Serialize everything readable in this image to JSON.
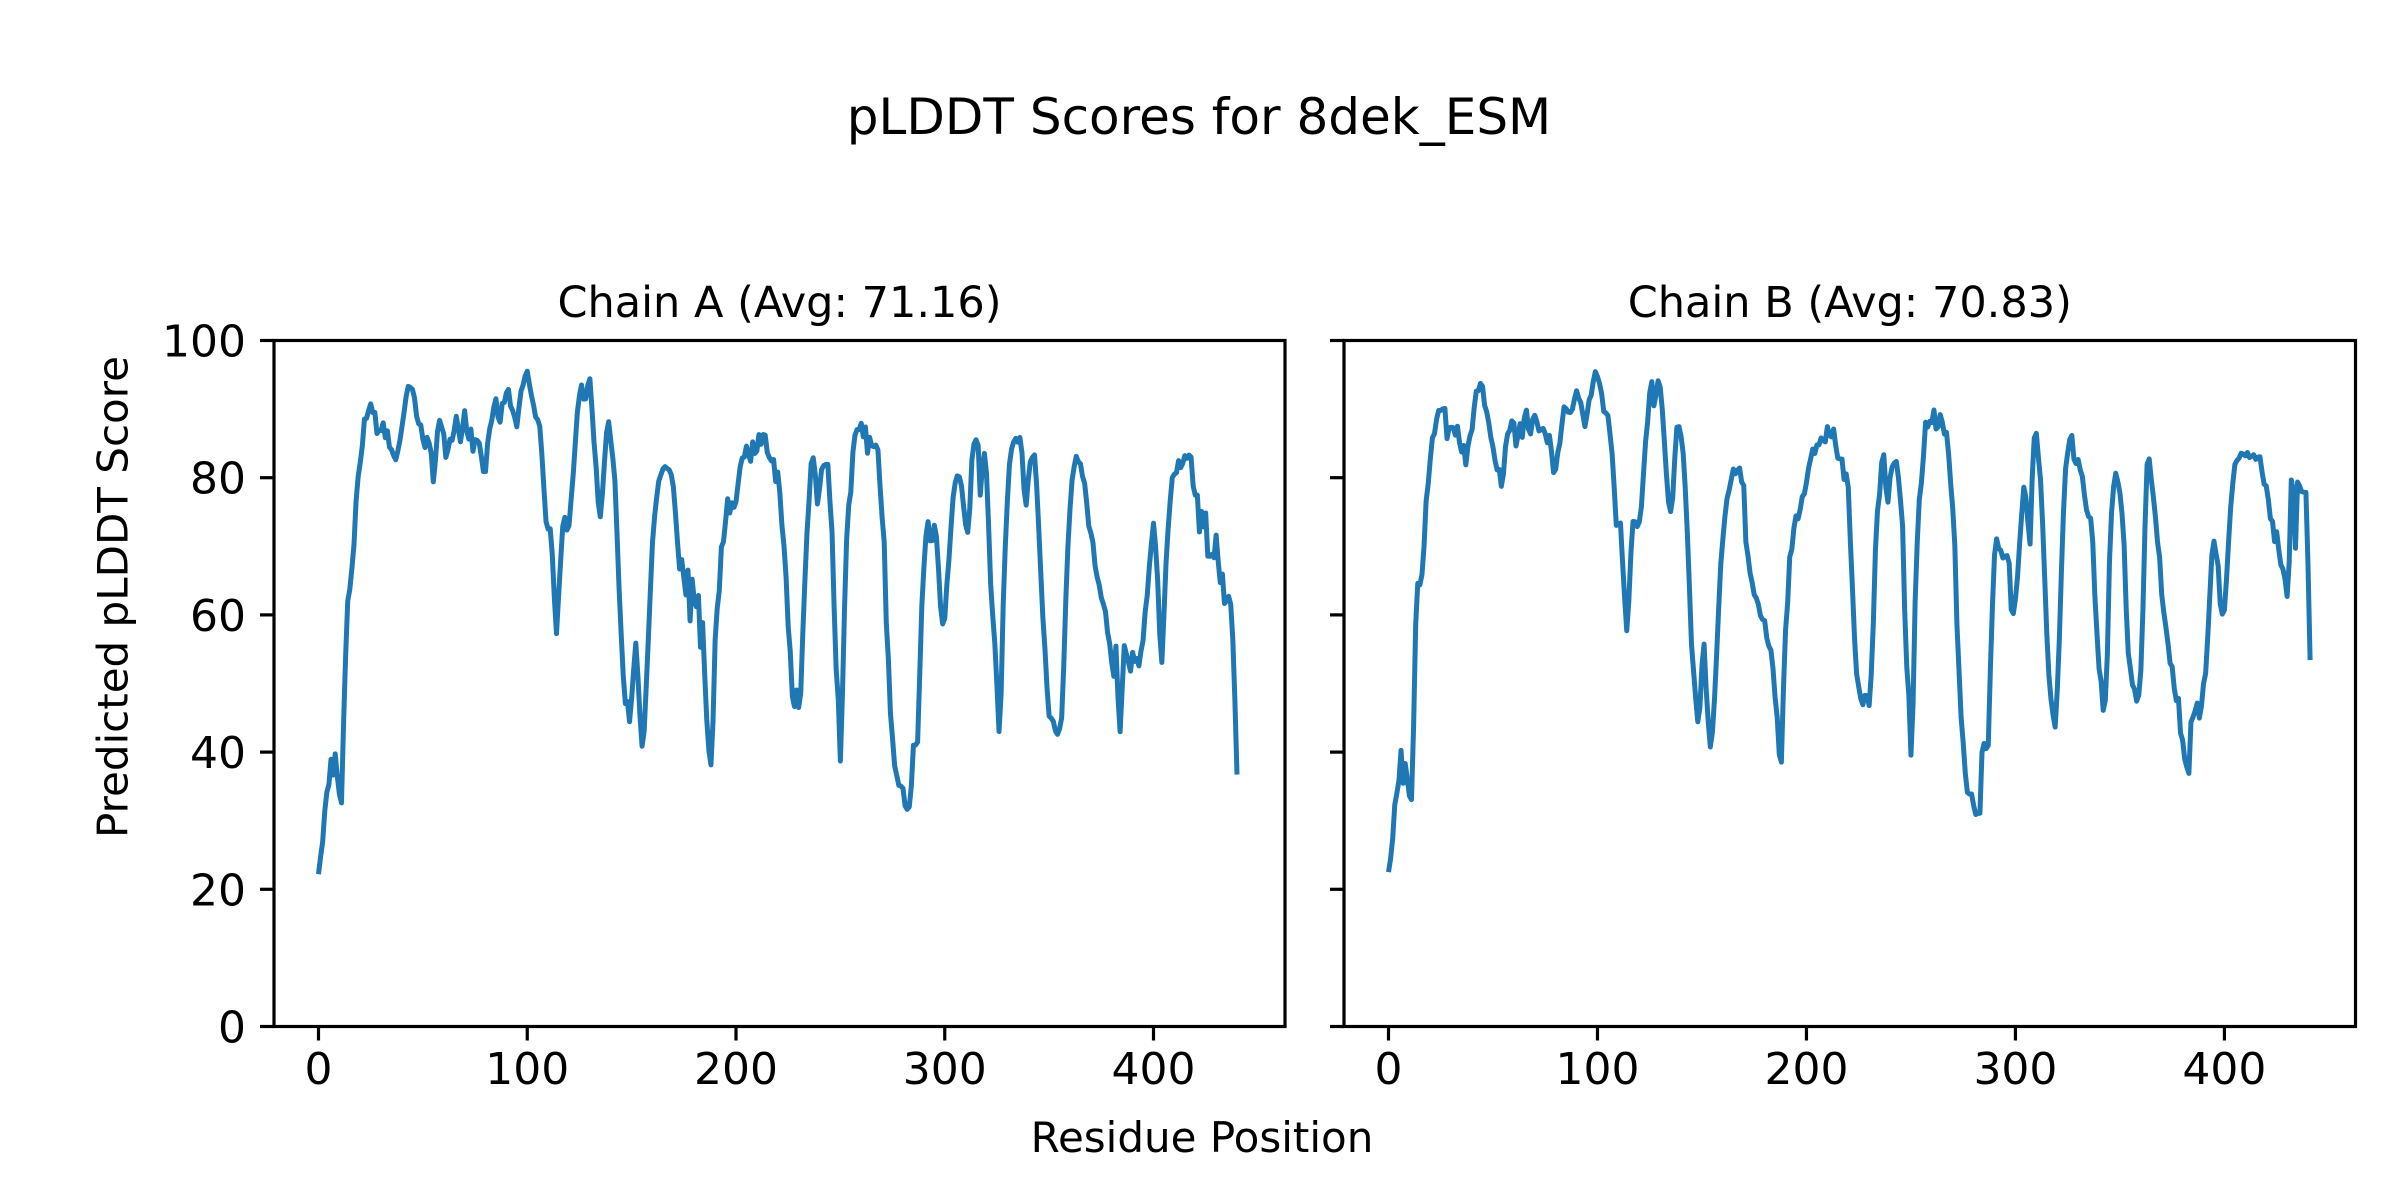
{
  "figure_title": "pLDDT Scores for 8dek_ESM",
  "xlabel": "Residue Position",
  "ylabel": "Predicted pLDDT Score",
  "colors": {
    "line": "#1f77b4",
    "text": "#000000",
    "background": "#ffffff"
  },
  "chart_data": [
    {
      "type": "line",
      "title": "Chain A (Avg: 71.16)",
      "chain": "A",
      "avg_label": "71.16",
      "xlabel": "Residue Position",
      "ylabel": "Predicted pLDDT Score",
      "xlim": [
        -22,
        462
      ],
      "ylim": [
        0,
        100
      ],
      "xticks": [
        0,
        100,
        200,
        300,
        400
      ],
      "yticks": [
        0,
        20,
        40,
        60,
        80,
        100
      ],
      "x_start": 0,
      "x_step": 1,
      "values": [
        22.2,
        24.76,
        26.95,
        31.4,
        34.15,
        35.3,
        38.95,
        36.65,
        39.75,
        36.49,
        33.9,
        32.59,
        44.05,
        54.07,
        62.02,
        63.75,
        66.77,
        70.28,
        76.57,
        80.15,
        82.21,
        84.66,
        88.54,
        88.64,
        89.78,
        90.76,
        89.5,
        89.51,
        86.44,
        86.89,
        86.88,
        88.0,
        85.82,
        86.82,
        84.44,
        84.06,
        83.24,
        82.62,
        83.88,
        85.43,
        87.45,
        89.58,
        91.87,
        93.31,
        93.15,
        92.88,
        91.63,
        88.97,
        87.85,
        87.69,
        85.6,
        84.4,
        85.89,
        85.04,
        83.57,
        79.39,
        82.49,
        86.71,
        88.37,
        87.36,
        86.41,
        82.97,
        84.07,
        85.62,
        85.44,
        86.88,
        88.95,
        87.13,
        85.24,
        87.21,
        89.77,
        86.87,
        85.63,
        87.09,
        83.85,
        85.55,
        85.44,
        85.02,
        83.13,
        80.89,
        80.89,
        84.95,
        87.1,
        88.34,
        90.28,
        91.51,
        88.83,
        88.09,
        90.82,
        90.96,
        92.37,
        92.86,
        90.44,
        89.79,
        88.78,
        87.41,
        90.12,
        92.59,
        93.5,
        94.81,
        95.52,
        93.66,
        92.0,
        90.6,
        88.85,
        88.45,
        87.5,
        83.41,
        78.33,
        73.59,
        72.52,
        72.56,
        68.73,
        62.36,
        57.27,
        62.61,
        67.9,
        72.89,
        74.22,
        72.37,
        73.02,
        76.76,
        80.4,
        84.96,
        89.53,
        91.93,
        93.52,
        91.45,
        91.5,
        93.47,
        94.42,
        90.06,
        85.1,
        81.51,
        76.38,
        74.31,
        77.65,
        82.32,
        86.58,
        88.16,
        85.45,
        82.83,
        79.53,
        71.85,
        63.77,
        57.18,
        51.08,
        47.07,
        47.37,
        44.43,
        47.84,
        52.09,
        55.89,
        51.15,
        45.28,
        40.86,
        43.01,
        49.64,
        56.45,
        63.64,
        70.61,
        74.32,
        77.12,
        79.53,
        80.4,
        81.28,
        81.61,
        81.35,
        81.15,
        80.43,
        78.64,
        74.86,
        70.49,
        66.69,
        68.06,
        65.48,
        62.92,
        66.52,
        59.13,
        65.2,
        62.09,
        61.2,
        62.83,
        55.28,
        58.87,
        51.39,
        44.7,
        40.27,
        38.14,
        44.55,
        56.34,
        60.94,
        63.56,
        69.9,
        70.67,
        73.64,
        76.93,
        74.86,
        76.35,
        75.67,
        76.5,
        79.09,
        81.58,
        82.87,
        83.02,
        84.6,
        83.39,
        82.39,
        85.23,
        83.53,
        83.91,
        86.28,
        84.86,
        86.29,
        86.2,
        83.65,
        82.93,
        82.45,
        82.65,
        79.44,
        80.82,
        77.79,
        73.09,
        70.04,
        65.42,
        58.32,
        54.61,
        48.13,
        46.64,
        49.06,
        46.5,
        48.54,
        57.3,
        64.95,
        71.88,
        76.7,
        82.05,
        82.91,
        80.38,
        76.17,
        78.38,
        81.19,
        81.76,
        81.94,
        81.95,
        76.52,
        72.13,
        61.18,
        51.98,
        47.7,
        38.69,
        48.51,
        61.07,
        71.03,
        75.99,
        77.92,
        83.7,
        86.21,
        87.01,
        87.02,
        87.94,
        85.95,
        87.39,
        83.57,
        85.88,
        84.68,
        84.52,
        84.76,
        84.04,
        78.78,
        74.19,
        70.63,
        58.76,
        53.54,
        45.57,
        41.96,
        38.0,
        36.59,
        35.16,
        35.04,
        34.72,
        32.17,
        31.66,
        32.01,
        35.07,
        41.0,
        41.02,
        41.46,
        51.14,
        61.16,
        66.87,
        71.51,
        73.59,
        70.8,
        70.82,
        73.07,
        71.43,
        66.76,
        61.19,
        58.68,
        59.48,
        64.37,
        68.0,
        72.77,
        77.11,
        79.24,
        80.27,
        80.12,
        78.82,
        75.9,
        73.17,
        72.04,
        75.53,
        82.61,
        84.91,
        85.54,
        84.73,
        77.46,
        81.41,
        83.54,
        80.6,
        73.05,
        64.47,
        59.81,
        55.75,
        49.71,
        42.99,
        48.47,
        61.48,
        70.0,
        76.65,
        81.94,
        84.16,
        85.21,
        85.73,
        85.19,
        85.87,
        83.6,
        78.27,
        76.0,
        79.67,
        82.34,
        82.97,
        83.33,
        79.01,
        72.79,
        66.11,
        59.62,
        55.05,
        49.36,
        45.23,
        44.94,
        44.49,
        43.1,
        42.59,
        43.38,
        44.96,
        52.55,
        62.2,
        69.96,
        75.42,
        79.66,
        81.59,
        83.12,
        82.31,
        82.04,
        80.18,
        79.21,
        76.35,
        72.94,
        71.94,
        70.53,
        67.17,
        65.52,
        64.34,
        62.51,
        61.56,
        60.49,
        57.42,
        55.84,
        53.02,
        51.04,
        55.45,
        47.9,
        42.97,
        49.29,
        55.52,
        54.31,
        53.12,
        51.8,
        54.53,
        53.21,
        53.65,
        52.57,
        54.7,
        56.26,
        60.44,
        62.84,
        67.01,
        70.36,
        73.37,
        69.95,
        65.03,
        57.18,
        53.07,
        59.97,
        67.55,
        72.48,
        76.62,
        80.0,
        80.52,
        80.72,
        82.49,
        81.46,
        82.09,
        83.21,
        82.82,
        83.3,
        83.0,
        78.79,
        77.46,
        77.46,
        72.08,
        75.09,
        72.82,
        74.86,
        68.57,
        68.55,
        68.83,
        68.33,
        71.63,
        67.78,
        64.7,
        65.95,
        61.67,
        62.01,
        62.71,
        61.52,
        56.41,
        47.5,
        36.72
      ]
    },
    {
      "type": "line",
      "title": "Chain B (Avg: 70.83)",
      "chain": "B",
      "avg_label": "70.83",
      "xlabel": "Residue Position",
      "ylabel": "Predicted pLDDT Score",
      "xlim": [
        -22,
        462
      ],
      "ylim": [
        0,
        100
      ],
      "xticks": [
        0,
        100,
        200,
        300,
        400
      ],
      "yticks": [
        0,
        20,
        40,
        60,
        80,
        100
      ],
      "x_start": 0,
      "x_step": 1,
      "values": [
        22.5,
        24.46,
        27.39,
        32.32,
        33.99,
        35.86,
        40.26,
        35.45,
        38.33,
        36.09,
        33.63,
        33.07,
        43.69,
        58.52,
        64.6,
        64.38,
        65.83,
        69.97,
        76.6,
        79.11,
        82.7,
        85.8,
        86.41,
        88.51,
        89.79,
        89.81,
        90.02,
        90.1,
        85.7,
        87.27,
        87.34,
        87.28,
        86.2,
        87.5,
        85.09,
        83.74,
        84.7,
        81.87,
        84.55,
        86.09,
        87.01,
        90.2,
        92.61,
        92.67,
        93.75,
        93.3,
        90.53,
        89.61,
        87.95,
        85.81,
        84.46,
        82.47,
        81.14,
        81.2,
        78.74,
        80.55,
        84.54,
        86.38,
        86.88,
        88.29,
        87.98,
        84.62,
        86.22,
        87.89,
        85.88,
        88.73,
        89.85,
        87.05,
        86.38,
        88.53,
        89.1,
        88.13,
        86.81,
        87.02,
        87.19,
        86.44,
        85.09,
        86.16,
        83.82,
        80.74,
        81.22,
        83.65,
        85.03,
        87.8,
        90.32,
        90.07,
        89.55,
        89.5,
        89.98,
        91.48,
        92.68,
        91.58,
        90.97,
        89.18,
        87.45,
        89.21,
        91.35,
        92.03,
        94.05,
        95.46,
        94.72,
        93.71,
        92.22,
        89.66,
        89.44,
        89.06,
        86.35,
        83.51,
        78.55,
        73.05,
        73.21,
        73.39,
        67.69,
        62.45,
        57.69,
        62.06,
        69.0,
        73.62,
        73.58,
        72.87,
        73.55,
        75.71,
        80.48,
        85.2,
        88.18,
        92.35,
        94.0,
        90.48,
        92.05,
        94.14,
        93.22,
        89.99,
        85.34,
        80.46,
        76.46,
        75.06,
        77.1,
        82.89,
        87.35,
        87.45,
        86.01,
        83.57,
        78.49,
        71.92,
        64.02,
        55.63,
        51.75,
        47.83,
        44.42,
        46.49,
        52.61,
        55.75,
        49.24,
        44.41,
        40.75,
        42.91,
        47.77,
        54.1,
        61.0,
        67.4,
        71.06,
        74.38,
        76.99,
        78.19,
        79.74,
        81.26,
        80.57,
        81.09,
        81.42,
        79.4,
        78.87,
        70.63,
        68.66,
        66.13,
        64.74,
        62.94,
        62.45,
        61.51,
        59.89,
        59.33,
        59.17,
        56.66,
        55.45,
        54.86,
        52.14,
        47.91,
        45.09,
        39.63,
        38.53,
        49.35,
        57.8,
        61.76,
        68.46,
        69.56,
        72.68,
        74.43,
        74.0,
        75.37,
        77.24,
        77.64,
        79.31,
        81.38,
        82.75,
        84.18,
        83.53,
        84.77,
        84.79,
        85.8,
        85.41,
        85.22,
        87.45,
        86.16,
        85.95,
        87.1,
        84.67,
        82.85,
        82.74,
        82.71,
        79.74,
        80.56,
        78.59,
        70.76,
        63.91,
        56.62,
        51.4,
        49.54,
        47.79,
        46.91,
        48.26,
        48.23,
        46.78,
        51.37,
        58.77,
        69.42,
        75.21,
        77.58,
        82.21,
        83.35,
        78.56,
        76.43,
        80.01,
        81.57,
        82.13,
        82.37,
        80.03,
        76.68,
        72.97,
        60.66,
        52.43,
        48.25,
        39.55,
        46.96,
        61.91,
        70.52,
        76.84,
        79.26,
        83.18,
        88.08,
        87.37,
        88.22,
        88.02,
        89.87,
        87.1,
        87.42,
        89.2,
        88.09,
        86.35,
        86.61,
        83.54,
        79.22,
        75.44,
        70.12,
        58.59,
        51.9,
        45.05,
        41.38,
        36.95,
        34.14,
        33.89,
        33.9,
        32.22,
        30.91,
        31.06,
        31.09,
        39.94,
        41.27,
        40.5,
        40.97,
        52.01,
        61.35,
        68.78,
        71.08,
        69.7,
        69.4,
        68.29,
        68.57,
        68.63,
        67.53,
        60.79,
        60.18,
        62.36,
        65.56,
        70.39,
        74.66,
        78.61,
        77.13,
        73.45,
        70.33,
        79.81,
        85.78,
        86.48,
        82.93,
        79.72,
        73.31,
        65.4,
        57.33,
        51.23,
        47.73,
        45.41,
        43.65,
        48.97,
        56.45,
        66.39,
        75.08,
        81.34,
        83.62,
        85.56,
        86.16,
        82.68,
        82.06,
        82.66,
        81.15,
        80.21,
        77.52,
        75.35,
        74.34,
        74.07,
        70.63,
        62.83,
        57.4,
        52.19,
        50.3,
        46.08,
        47.54,
        54.36,
        67.81,
        74.93,
        78.76,
        80.66,
        79.39,
        77.77,
        74.74,
        70.22,
        60.94,
        54.4,
        52.19,
        49.8,
        49.17,
        47.42,
        48.28,
        51.85,
        60.69,
        72.91,
        81.94,
        82.75,
        79.77,
        77.2,
        74.24,
        70.58,
        68.36,
        62.96,
        60.35,
        58.2,
        55.86,
        52.95,
        52.44,
        49.3,
        47.49,
        47.84,
        42.78,
        41.74,
        38.99,
        37.81,
        36.9,
        44.4,
        45.12,
        46.02,
        47.15,
        44.96,
        46.69,
        49.97,
        51.46,
        56.64,
        62.71,
        68.75,
        70.76,
        68.88,
        67.18,
        61.6,
        60.11,
        60.72,
        65.23,
        70.68,
        75.73,
        79.15,
        81.92,
        82.51,
        82.86,
        83.56,
        83.45,
        83.19,
        83.67,
        82.94,
        83.13,
        83.35,
        82.67,
        82.99,
        83.06,
        80.86,
        79.05,
        78.81,
        76.82,
        74.04,
        73.64,
        70.68,
        72.12,
        69.53,
        67.31,
        66.68,
        65.2,
        62.69,
        67.73,
        79.66,
        78.02,
        69.72,
        79.37,
        78.78,
        77.97,
        77.88,
        77.86,
        67.29,
        53.42
      ]
    }
  ]
}
